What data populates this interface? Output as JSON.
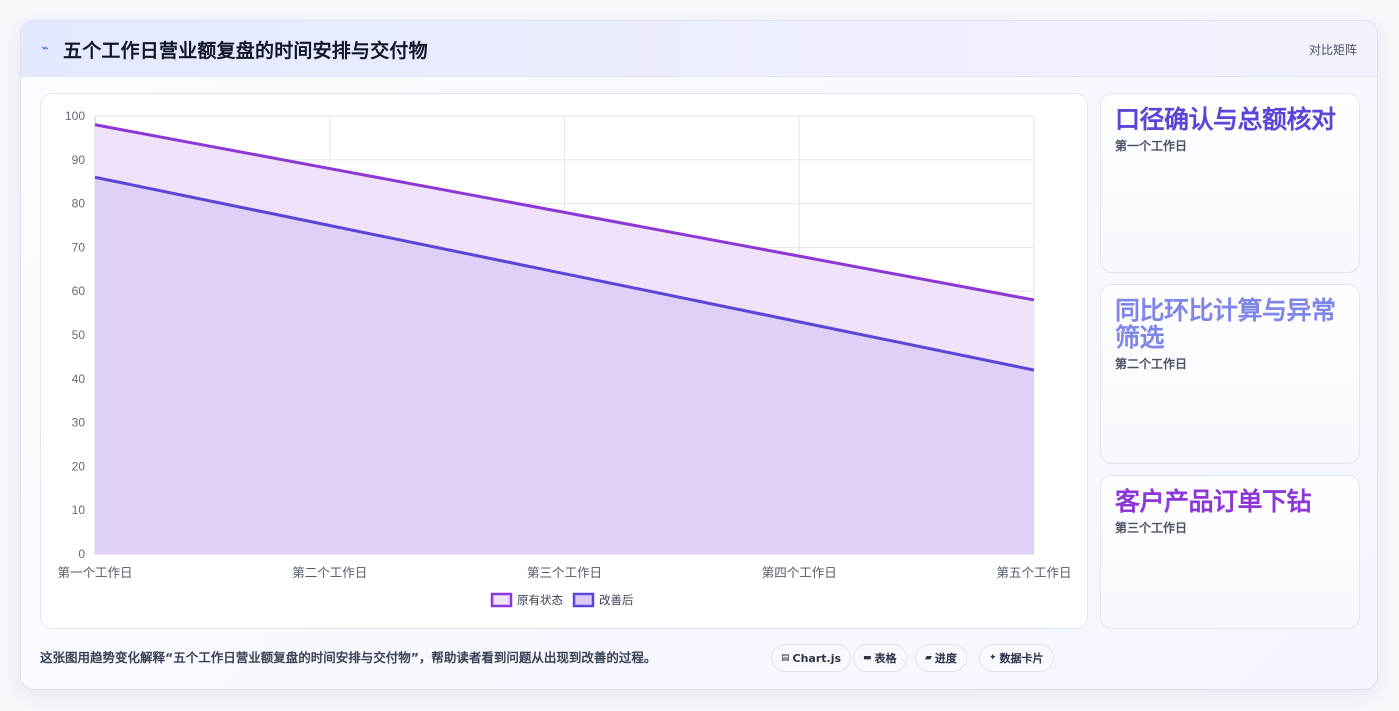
{
  "header": {
    "icon": "trend-line-icon",
    "title": "五个工作日营业额复盘的时间安排与交付物",
    "tag": "对比矩阵"
  },
  "chart_data": {
    "type": "area",
    "categories": [
      "第一个工作日",
      "第二个工作日",
      "第三个工作日",
      "第四个工作日",
      "第五个工作日"
    ],
    "series": [
      {
        "name": "原有状态",
        "values": [
          98,
          88,
          78,
          68,
          58
        ],
        "color": "#8e37d7",
        "fill": "#efe2f9"
      },
      {
        "name": "改善后",
        "values": [
          86,
          75,
          64,
          53,
          42
        ],
        "color": "#5b44d6",
        "fill": "#dccdf8"
      }
    ],
    "ylim": [
      0,
      100
    ],
    "yticks": [
      0,
      10,
      20,
      30,
      40,
      50,
      60,
      70,
      80,
      90,
      100
    ],
    "grid": true,
    "legend": "bottom"
  },
  "side_cards": [
    {
      "title": "口径确认与总额核对",
      "subtitle": "第一个工作日",
      "color": "#5b44d6"
    },
    {
      "title": "同比环比计算与异常筛选",
      "subtitle": "第二个工作日",
      "color": "#7f86e8"
    },
    {
      "title": "客户产品订单下钻",
      "subtitle": "第三个工作日",
      "color": "#8e37d7"
    }
  ],
  "footer": {
    "caption": "这张图用趋势变化解释“五个工作日营业额复盘的时间安排与交付物”，帮助读者看到问题从出现到改善的过程。",
    "badges": [
      {
        "icon": "chart-icon",
        "glyph": "▤",
        "label": "Chart.js"
      },
      {
        "icon": "table-icon",
        "glyph": "▬",
        "label": "表格"
      },
      {
        "icon": "progress-icon",
        "glyph": "▰",
        "label": "进度"
      },
      {
        "icon": "sparkle-icon",
        "glyph": "✦",
        "label": "数据卡片"
      }
    ]
  }
}
